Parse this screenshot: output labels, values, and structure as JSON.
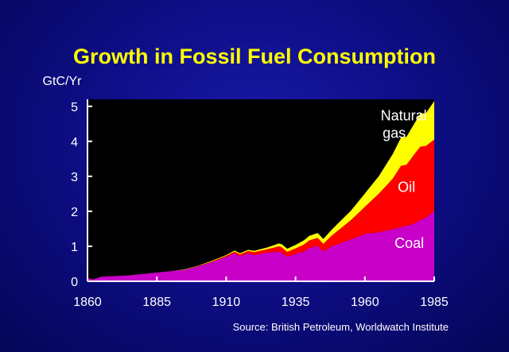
{
  "chart_data": {
    "type": "area",
    "stacked": true,
    "title": "Growth in Fossil Fuel Consumption",
    "ylabel": "GtC/Yr",
    "source": "Source: British Petroleum, Worldwatch Institute",
    "xlim": [
      1860,
      1985
    ],
    "ylim": [
      0,
      5.2
    ],
    "xticks": [
      "1860",
      "1885",
      "1910",
      "1935",
      "1960",
      "1985"
    ],
    "yticks": [
      "0",
      "1",
      "2",
      "3",
      "4",
      "5"
    ],
    "x": [
      1860,
      1862,
      1865,
      1870,
      1875,
      1880,
      1885,
      1890,
      1895,
      1900,
      1905,
      1910,
      1913,
      1915,
      1918,
      1920,
      1925,
      1929,
      1930,
      1932,
      1935,
      1938,
      1940,
      1943,
      1945,
      1948,
      1950,
      1955,
      1960,
      1965,
      1970,
      1973,
      1975,
      1978,
      1980,
      1982,
      1985
    ],
    "series": [
      {
        "name": "Coal",
        "color": "#c800c8",
        "values": [
          0.1,
          0.05,
          0.13,
          0.15,
          0.17,
          0.21,
          0.25,
          0.29,
          0.33,
          0.43,
          0.55,
          0.7,
          0.8,
          0.72,
          0.8,
          0.75,
          0.82,
          0.85,
          0.82,
          0.7,
          0.78,
          0.85,
          0.95,
          1.02,
          0.85,
          1.0,
          1.05,
          1.2,
          1.35,
          1.4,
          1.48,
          1.55,
          1.58,
          1.65,
          1.75,
          1.82,
          2.0
        ]
      },
      {
        "name": "Oil",
        "color": "#ff0000",
        "values": [
          0,
          0,
          0,
          0,
          0,
          0,
          0,
          0,
          0,
          0.01,
          0.02,
          0.03,
          0.05,
          0.05,
          0.07,
          0.08,
          0.1,
          0.15,
          0.15,
          0.14,
          0.16,
          0.2,
          0.22,
          0.22,
          0.22,
          0.3,
          0.38,
          0.55,
          0.78,
          1.1,
          1.45,
          1.75,
          1.75,
          2.0,
          2.1,
          2.05,
          2.05
        ]
      },
      {
        "name": "Natural gas",
        "color": "#ffff00",
        "values": [
          0,
          0,
          0,
          0,
          0,
          0,
          0,
          0,
          0.01,
          0.01,
          0.02,
          0.02,
          0.03,
          0.03,
          0.03,
          0.04,
          0.05,
          0.08,
          0.09,
          0.09,
          0.1,
          0.12,
          0.13,
          0.14,
          0.14,
          0.17,
          0.2,
          0.27,
          0.38,
          0.5,
          0.7,
          0.8,
          0.8,
          0.88,
          0.95,
          0.93,
          1.1
        ]
      }
    ],
    "series_labels": [
      {
        "lines": [
          "Natural",
          "gas"
        ],
        "color": "#ffffff"
      },
      {
        "lines": [
          "Oil"
        ],
        "color": "#ffffff"
      },
      {
        "lines": [
          "Coal"
        ],
        "color": "#ffffff"
      }
    ],
    "colors": {
      "title": "#ffff00",
      "text": "#ffffff",
      "plot_bg": "#000000",
      "axis": "#ffffff"
    }
  }
}
